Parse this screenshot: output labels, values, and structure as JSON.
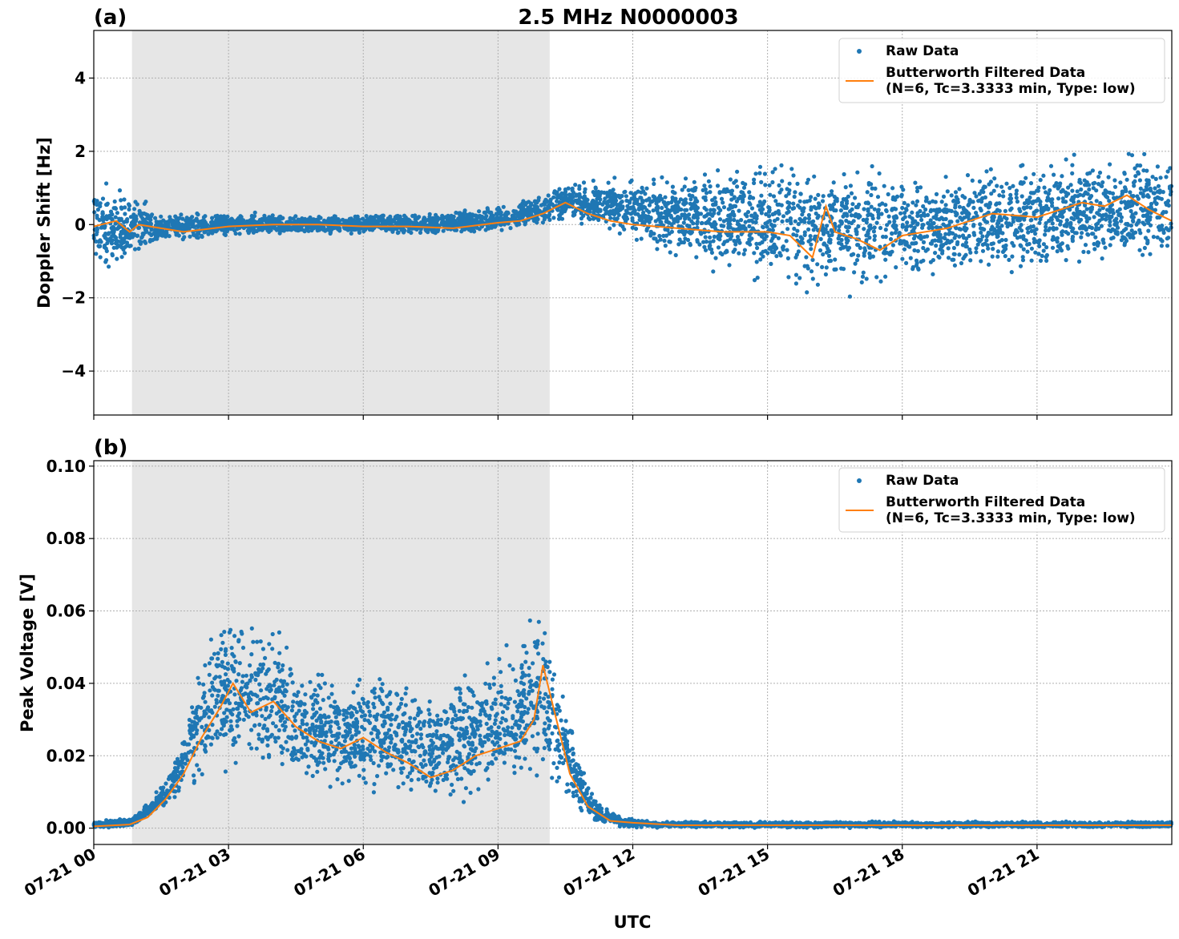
{
  "figure": {
    "title": "2.5 MHz N0000003",
    "xlabel": "UTC",
    "shade_hours": [
      0.85,
      10.15
    ],
    "x_range_hours": [
      0,
      24
    ],
    "x_ticks": [
      {
        "hour": 0,
        "label": "07-21 00"
      },
      {
        "hour": 3,
        "label": "07-21 03"
      },
      {
        "hour": 6,
        "label": "07-21 06"
      },
      {
        "hour": 9,
        "label": "07-21 09"
      },
      {
        "hour": 12,
        "label": "07-21 12"
      },
      {
        "hour": 15,
        "label": "07-21 15"
      },
      {
        "hour": 18,
        "label": "07-21 18"
      },
      {
        "hour": 21,
        "label": "07-21 21"
      }
    ]
  },
  "colors": {
    "raw": "#1f77b4",
    "filtered": "#ff7f0e",
    "shade": "#e6e6e6",
    "grid": "#b0b0b0"
  },
  "legend": {
    "raw": "Raw Data",
    "filtered_line1": "Butterworth Filtered Data",
    "filtered_line2": "(N=6, Tc=3.3333 min, Type: low)"
  },
  "chart_data": [
    {
      "type": "scatter",
      "panel": "(a)",
      "ylabel": "Doppler Shift [Hz]",
      "ylim": [
        -5.2,
        5.3
      ],
      "yticks": [
        4,
        2,
        0,
        -2,
        -4
      ],
      "ytick_labels": [
        "4",
        "2",
        "0",
        "−2",
        "−4"
      ],
      "grid": true,
      "legend_position": "top-right",
      "series": [
        {
          "name": "Raw Data",
          "x": [
            0,
            0.8,
            1.5,
            3,
            6,
            8.5,
            10,
            10.5,
            11.5,
            12.5,
            14,
            16,
            17.5,
            19,
            21,
            23,
            24
          ],
          "y_min": [
            -1.4,
            -1.3,
            -0.6,
            -0.35,
            -0.3,
            -0.35,
            -0.1,
            0,
            -0.3,
            -0.8,
            -1.5,
            -2.2,
            -2.0,
            -1.6,
            -1.5,
            -1.4,
            -1.3
          ],
          "y_max": [
            1.4,
            1.1,
            0.4,
            0.35,
            0.3,
            0.45,
            0.9,
            1.3,
            1.3,
            1.4,
            1.8,
            2.2,
            1.8,
            1.7,
            2.0,
            2.3,
            2.2
          ]
        },
        {
          "name": "Butterworth Filtered Data (N=6, Tc=3.3333 min, Type: low)",
          "x": [
            0,
            0.5,
            0.8,
            1.0,
            1.5,
            2.0,
            3.0,
            4.0,
            5.0,
            6.0,
            7.0,
            8.0,
            9.0,
            9.5,
            10.0,
            10.5,
            11.0,
            11.5,
            12.0,
            13.0,
            14.0,
            15.0,
            15.5,
            16.0,
            16.3,
            16.5,
            17.0,
            17.5,
            18.0,
            19.0,
            20.0,
            21.0,
            22.0,
            22.5,
            23.0,
            23.5,
            24.0
          ],
          "y": [
            -0.05,
            0.1,
            -0.2,
            0.0,
            -0.1,
            -0.2,
            -0.05,
            0.0,
            0.0,
            -0.05,
            -0.05,
            -0.1,
            0.05,
            0.1,
            0.3,
            0.6,
            0.3,
            0.1,
            0.0,
            -0.1,
            -0.2,
            -0.2,
            -0.3,
            -0.9,
            0.5,
            -0.2,
            -0.4,
            -0.7,
            -0.3,
            -0.1,
            0.3,
            0.2,
            0.6,
            0.5,
            0.8,
            0.4,
            0.1
          ]
        }
      ]
    },
    {
      "type": "scatter",
      "panel": "(b)",
      "ylabel": "Peak Voltage [V]",
      "ylim": [
        -0.0045,
        0.1015
      ],
      "yticks": [
        0.1,
        0.08,
        0.06,
        0.04,
        0.02,
        0.0
      ],
      "ytick_labels": [
        "0.10",
        "0.08",
        "0.06",
        "0.04",
        "0.02",
        "0.00"
      ],
      "grid": true,
      "legend_position": "top-right",
      "series": [
        {
          "name": "Raw Data",
          "x": [
            0,
            0.8,
            1.3,
            1.8,
            2.3,
            2.8,
            3.3,
            4.0,
            4.5,
            5.5,
            6.5,
            7.5,
            8.3,
            8.8,
            9.5,
            9.9,
            10.4,
            10.8,
            11.2,
            11.8,
            12.5,
            24
          ],
          "y_min": [
            0.0,
            0.0,
            0.003,
            0.006,
            0.009,
            0.01,
            0.01,
            0.009,
            0.008,
            0.007,
            0.006,
            0.005,
            0.006,
            0.008,
            0.01,
            0.012,
            0.008,
            0.004,
            0.001,
            0.0,
            0.0,
            0.0
          ],
          "y_max": [
            0.002,
            0.003,
            0.008,
            0.02,
            0.045,
            0.065,
            0.065,
            0.06,
            0.05,
            0.045,
            0.045,
            0.04,
            0.045,
            0.05,
            0.055,
            0.065,
            0.045,
            0.02,
            0.008,
            0.003,
            0.002,
            0.002
          ]
        },
        {
          "name": "Butterworth Filtered Data (N=6, Tc=3.3333 min, Type: low)",
          "x": [
            0,
            0.8,
            1.2,
            1.6,
            2.0,
            2.4,
            2.8,
            3.1,
            3.5,
            4.0,
            4.5,
            5.0,
            5.5,
            6.0,
            6.5,
            7.0,
            7.5,
            8.0,
            8.5,
            9.0,
            9.5,
            9.8,
            10.0,
            10.3,
            10.6,
            11.0,
            11.5,
            12.0,
            13.0,
            24.0
          ],
          "y": [
            0.0005,
            0.001,
            0.003,
            0.008,
            0.015,
            0.025,
            0.033,
            0.04,
            0.032,
            0.035,
            0.028,
            0.024,
            0.022,
            0.025,
            0.021,
            0.018,
            0.014,
            0.016,
            0.02,
            0.022,
            0.024,
            0.03,
            0.045,
            0.03,
            0.015,
            0.006,
            0.002,
            0.0015,
            0.0008,
            0.0008
          ]
        }
      ]
    }
  ]
}
